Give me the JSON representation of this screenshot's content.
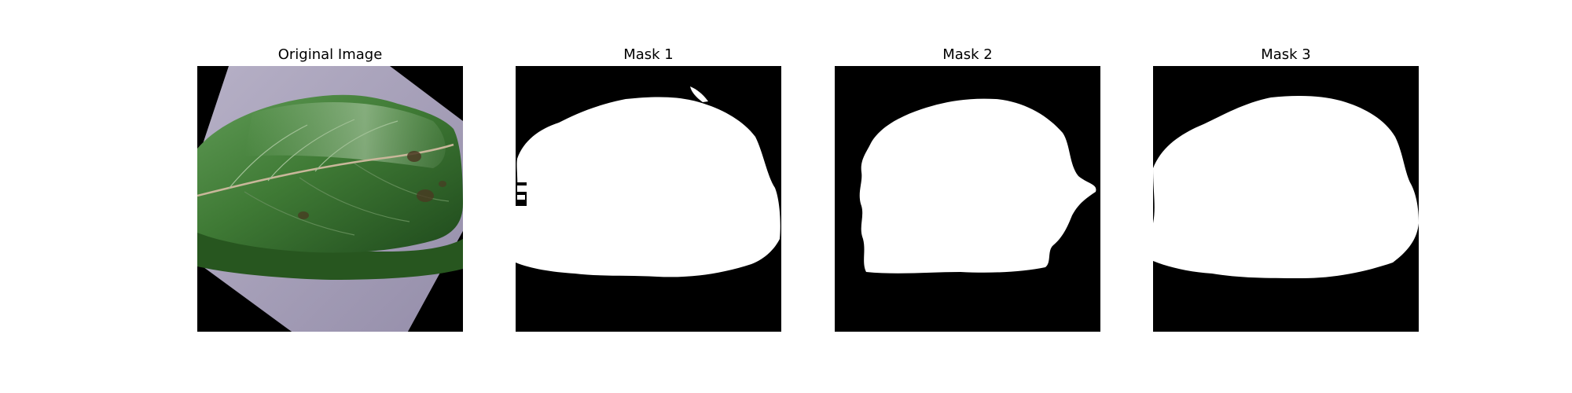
{
  "figure": {
    "panels": [
      {
        "title": "Original Image"
      },
      {
        "title": "Mask 1"
      },
      {
        "title": "Mask 2"
      },
      {
        "title": "Mask 3"
      }
    ]
  },
  "colors": {
    "background": "#000000",
    "mask": "#ffffff",
    "paper": "#a39cb4",
    "leaf_dark": "#234f20",
    "leaf_mid": "#3f7a35",
    "leaf_light": "#7fa874"
  }
}
